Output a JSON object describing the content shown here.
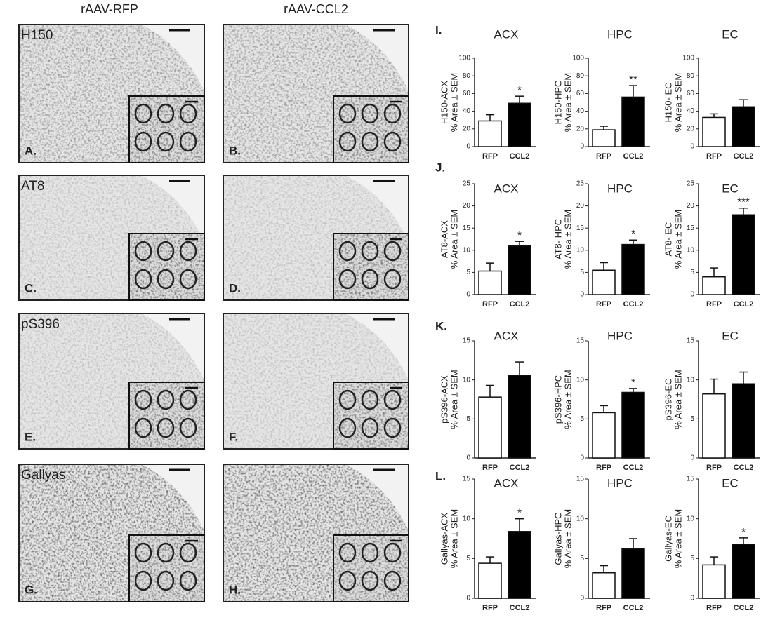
{
  "column_headers": [
    "rAAV-RFP",
    "rAAV-CCL2"
  ],
  "image_panels": [
    {
      "label": "A.",
      "stain": "H150"
    },
    {
      "label": "B."
    },
    {
      "label": "C.",
      "stain": "AT8"
    },
    {
      "label": "D."
    },
    {
      "label": "E.",
      "stain": "pS396"
    },
    {
      "label": "F."
    },
    {
      "label": "G.",
      "stain": "Gallyas"
    },
    {
      "label": "H."
    }
  ],
  "row_labels": [
    "I.",
    "J.",
    "K.",
    "L."
  ],
  "chart_data": [
    {
      "type": "bar",
      "title": "ACX",
      "ylabel": [
        "H150-ACX",
        "% Area ± SEM"
      ],
      "categories": [
        "RFP",
        "CCL2"
      ],
      "values": [
        29,
        49
      ],
      "errors": [
        7,
        8
      ],
      "colors": [
        "#ffffff",
        "#000000"
      ],
      "value_annotations": [
        null,
        "*"
      ],
      "ylim": [
        0,
        100
      ],
      "yticks": [
        0,
        20,
        40,
        60,
        80,
        100
      ]
    },
    {
      "type": "bar",
      "title": "HPC",
      "ylabel": [
        "H150-HPC",
        "% Area ± SEM"
      ],
      "categories": [
        "RFP",
        "CCL2"
      ],
      "values": [
        19,
        56
      ],
      "errors": [
        4,
        13
      ],
      "colors": [
        "#ffffff",
        "#000000"
      ],
      "value_annotations": [
        null,
        "**"
      ],
      "ylim": [
        0,
        100
      ],
      "yticks": [
        0,
        20,
        40,
        60,
        80,
        100
      ]
    },
    {
      "type": "bar",
      "title": "EC",
      "ylabel": [
        "H150- EC",
        "% Area ± SEM"
      ],
      "categories": [
        "RFP",
        "CCL2"
      ],
      "values": [
        33,
        45
      ],
      "errors": [
        4,
        8
      ],
      "colors": [
        "#ffffff",
        "#000000"
      ],
      "ylim": [
        0,
        100
      ],
      "yticks": [
        0,
        20,
        40,
        60,
        80,
        100
      ]
    },
    {
      "type": "bar",
      "title": "ACX",
      "ylabel": [
        "AT8-ACX",
        "% Area ± SEM"
      ],
      "categories": [
        "RFP",
        "CCL2"
      ],
      "values": [
        5.3,
        11
      ],
      "errors": [
        1.8,
        1
      ],
      "colors": [
        "#ffffff",
        "#000000"
      ],
      "value_annotations": [
        null,
        "*"
      ],
      "ylim": [
        0,
        25
      ],
      "yticks": [
        0,
        5,
        10,
        15,
        20,
        25
      ]
    },
    {
      "type": "bar",
      "title": "HPC",
      "ylabel": [
        "AT8- HPC",
        "% Area ± SEM"
      ],
      "categories": [
        "RFP",
        "CCL2"
      ],
      "values": [
        5.5,
        11.3
      ],
      "errors": [
        1.7,
        1
      ],
      "colors": [
        "#ffffff",
        "#000000"
      ],
      "value_annotations": [
        null,
        "*"
      ],
      "ylim": [
        0,
        25
      ],
      "yticks": [
        0,
        5,
        10,
        15,
        20,
        25
      ]
    },
    {
      "type": "bar",
      "title": "EC",
      "ylabel": [
        "AT8- EC",
        "% Area ± SEM"
      ],
      "categories": [
        "RFP",
        "CCL2"
      ],
      "values": [
        4,
        18
      ],
      "errors": [
        2,
        1.5
      ],
      "colors": [
        "#ffffff",
        "#000000"
      ],
      "value_annotations": [
        null,
        "***"
      ],
      "ylim": [
        0,
        25
      ],
      "yticks": [
        0,
        5,
        10,
        15,
        20,
        25
      ]
    },
    {
      "type": "bar",
      "title": "ACX",
      "ylabel": [
        "pS396-ACX",
        "% Area ± SEM"
      ],
      "categories": [
        "RFP",
        "CCL2"
      ],
      "values": [
        7.8,
        10.6
      ],
      "errors": [
        1.5,
        1.7
      ],
      "colors": [
        "#ffffff",
        "#000000"
      ],
      "ylim": [
        0,
        15
      ],
      "yticks": [
        0,
        5,
        10,
        15
      ]
    },
    {
      "type": "bar",
      "title": "HPC",
      "ylabel": [
        "pS396-HPC",
        "% Area ± SEM"
      ],
      "categories": [
        "RFP",
        "CCL2"
      ],
      "values": [
        5.8,
        8.4
      ],
      "errors": [
        0.9,
        0.5
      ],
      "colors": [
        "#ffffff",
        "#000000"
      ],
      "value_annotations": [
        null,
        "*"
      ],
      "ylim": [
        0,
        15
      ],
      "yticks": [
        0,
        5,
        10,
        15
      ]
    },
    {
      "type": "bar",
      "title": "EC",
      "ylabel": [
        "pS396-EC",
        "% Area ± SEM"
      ],
      "categories": [
        "RFP",
        "CCL2"
      ],
      "values": [
        8.2,
        9.5
      ],
      "errors": [
        1.9,
        1.5
      ],
      "colors": [
        "#ffffff",
        "#000000"
      ],
      "ylim": [
        0,
        15
      ],
      "yticks": [
        0,
        5,
        10,
        15
      ]
    },
    {
      "type": "bar",
      "title": "ACX",
      "ylabel": [
        "Gallyas-ACX",
        "% Area ± SEM"
      ],
      "categories": [
        "RFP",
        "CCL2"
      ],
      "values": [
        4.4,
        8.4
      ],
      "errors": [
        0.8,
        1.6
      ],
      "colors": [
        "#ffffff",
        "#000000"
      ],
      "value_annotations": [
        null,
        "*"
      ],
      "ylim": [
        0,
        15
      ],
      "yticks": [
        0,
        5,
        10,
        15
      ]
    },
    {
      "type": "bar",
      "title": "HPC",
      "ylabel": [
        "Gallyas-HPC",
        "% Area ± SEM"
      ],
      "categories": [
        "RFP",
        "CCL2"
      ],
      "values": [
        3.2,
        6.2
      ],
      "errors": [
        0.9,
        1.3
      ],
      "colors": [
        "#ffffff",
        "#000000"
      ],
      "ylim": [
        0,
        15
      ],
      "yticks": [
        0,
        5,
        10,
        15
      ]
    },
    {
      "type": "bar",
      "title": "EC",
      "ylabel": [
        "Gallyas-EC",
        "% Area ± SEM"
      ],
      "categories": [
        "RFP",
        "CCL2"
      ],
      "values": [
        4.2,
        6.8
      ],
      "errors": [
        1,
        0.8
      ],
      "colors": [
        "#ffffff",
        "#000000"
      ],
      "value_annotations": [
        null,
        "*"
      ],
      "ylim": [
        0,
        15
      ],
      "yticks": [
        0,
        5,
        10,
        15
      ]
    }
  ]
}
